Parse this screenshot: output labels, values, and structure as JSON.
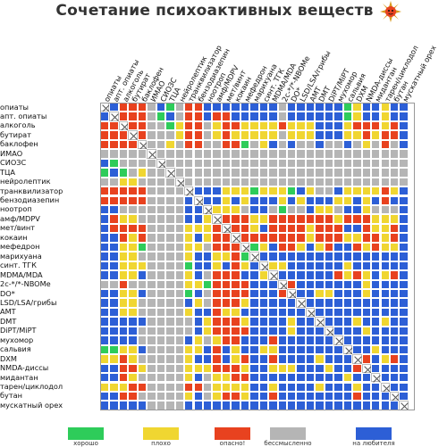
{
  "title": "Сочетание психоактивных веществ",
  "substances": [
    "опиаты",
    "апт. опиаты",
    "алкоголь",
    "бутират",
    "баклофен",
    "ИМАО",
    "СИОЗС",
    "ТЦА",
    "нейролептик",
    "транквилизатор",
    "бензодиазепин",
    "ноотроп",
    "амф/MDPV",
    "мет/винт",
    "кокаин",
    "мефедрон",
    "марихуана",
    "синт. ТГК",
    "MDMA/MDA",
    "2с-*/*-NBOMe",
    "DO*",
    "LSD/LSA/грибы",
    "AMT",
    "DMT",
    "DiPT/MiPT",
    "мухомор",
    "сальвия",
    "DXM",
    "NMDA-диссы",
    "мидантан",
    "тарен/циклодол",
    "бутан",
    "мускатный орех"
  ],
  "colors": {
    "G": "#2ecc5a",
    "Y": "#f0d631",
    "R": "#e8421f",
    "X": "#b5b5b5",
    "B": "#2d5fd6"
  },
  "matrix": [
    "DBRRRXBGXRRBBBBBBBBXBBBBBBGYBBYBB",
    "BDRRRXGBXRRBRRBBBBBXBBBBBBGYBBYBB",
    "RRDRRXXGYRRXYRRYYYYRYYYBBBYRRRYRB",
    "RRRDRXXXYRRXYRYYYYYXYYYBBBYYRYRRB",
    "RRRRDXXYXRRXXRRGXYBXBXXBXXBXYXRXB",
    "XXXXXDXXXXXXXXXXXXXXXXXXXXXXXXXXX",
    "BGXXXXDXXXXXXXXXXXXXXXXXXXXXXXXXX",
    "GBGXYXXDXXXXXXXXXXXXXXXXXXXXXXXXX",
    "XXYYXXXXDXXXXXXXXXXXXXXXXXXXXXXXX",
    "RRRRRXXXXDBBBYYYGYYYGBYXXBYYYYRYB",
    "RRRRRXXXXBDBBYBYBBBYBYBBBYYBYBRBB",
    "BBXXXXXXXBBDYYYXBBXGXXBYYXBBYXXXB",
    "BRYYXXXXXBBYDRRRYYRRRRRRRYRRRYYYB",
    "BRRRRXXXXYYYRDRRYBRRRRYRRRBBRYYRB",
    "BBRYRXXXXYBYRRDRRRRRRRYRRRYYRRYRB",
    "BBYYGXXXXYYXRRRDGYBRRYBYRBBRYRYYB",
    "BBYYXXXXXYBBYYRGDBBBBBBBBBBBBBBBB",
    "BBYYYXXXXGBBYBRYBDYYBBBBBBYBBBBBB",
    "BBYYBXXXXYBXRRRBBYDBBBBBBRYRYBYRB",
    "XXRXXXXXXYYGRRRRBBBDRBBBBBBBYBBBB",
    "BBYYBXXXXGBXRRRRBBBRDBBYYBBBYBBBB",
    "BBYYXXXXXBYXRRRYBBBBBDBBBBBBBBBBB",
    "BBYYXXXXXYBBRYYBBBBBBBDBBBBBBBBBB",
    "BBBBBXXXXXBYRRRYBBBBYBBDBBBYBBYBB",
    "BBBBXXXXXXBYRRRRBBBBYBBBDBBBYBBBB",
    "BBBBXXXXXBYXYRRBBBRBBBBBBDBBBBBBB",
    "GGYYBXXXXYYBRBYBBYYBBBBBBBDBBYBBB",
    "YYRYXXXXXYBBRBYRBBRBBBBYBBBDRBYRB",
    "BBRRYXXXXYYYRRRYBBYYYBBBYBBRDBBBB",
    "BBRYXXXXXYBXYYRRBBBBBBBBBBYBBDBBB",
    "YYYRRXXXXRRXYYYYBBYBBBBYBBBYBBDBB",
    "BBRRXXXXXYBXYRRYBBRBBBBBBBBRBBBDB",
    "BBBBBXXXXBBBBBBBBBBBBBBBBBBBBBBBD"
  ],
  "legend": [
    {
      "key": "G",
      "label": "хорошо"
    },
    {
      "key": "Y",
      "label": "плохо"
    },
    {
      "key": "R",
      "label": "опасно!"
    },
    {
      "key": "X",
      "label": "бессмысленно"
    },
    {
      "key": "B",
      "label": "на любителя"
    }
  ]
}
